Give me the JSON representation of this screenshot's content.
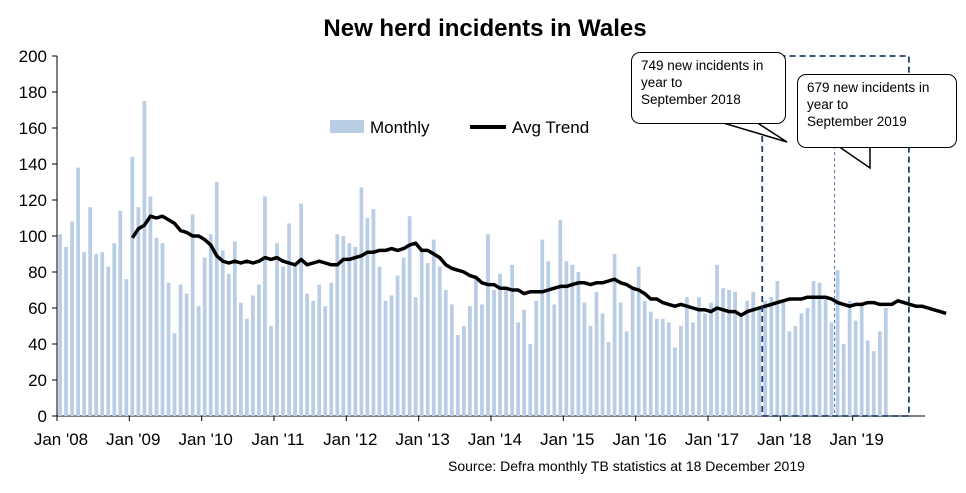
{
  "chart_data": {
    "type": "bar+line",
    "title": "New herd incidents in Wales",
    "xlabel": "",
    "ylabel": "",
    "ylim": [
      0,
      200
    ],
    "yticks": [
      0,
      20,
      40,
      60,
      80,
      100,
      120,
      140,
      160,
      180,
      200
    ],
    "x_tick_labels": [
      "Jan '08",
      "Jan '09",
      "Jan '10",
      "Jan '11",
      "Jan '12",
      "Jan '13",
      "Jan '14",
      "Jan '15",
      "Jan '16",
      "Jan '17",
      "Jan '18",
      "Jan '19"
    ],
    "legend": [
      "Monthly",
      "Avg Trend"
    ],
    "legend_position": "top-center",
    "series": [
      {
        "name": "Monthly",
        "type": "bar",
        "color": "#b9cde5",
        "start": "Jan 2008",
        "values": [
          101,
          94,
          108,
          138,
          91,
          116,
          90,
          91,
          83,
          96,
          114,
          76,
          144,
          116,
          175,
          122,
          99,
          96,
          74,
          46,
          73,
          68,
          112,
          61,
          88,
          101,
          130,
          92,
          79,
          97,
          63,
          54,
          67,
          73,
          122,
          50,
          96,
          83,
          107,
          85,
          118,
          68,
          64,
          73,
          61,
          74,
          101,
          100,
          96,
          94,
          127,
          110,
          115,
          83,
          64,
          67,
          78,
          88,
          111,
          66,
          92,
          85,
          98,
          83,
          70,
          62,
          45,
          50,
          61,
          77,
          62,
          101,
          70,
          79,
          70,
          84,
          52,
          59,
          40,
          64,
          98,
          86,
          62,
          109,
          86,
          84,
          80,
          63,
          50,
          69,
          57,
          41,
          90,
          63,
          47,
          71,
          83,
          64,
          58,
          54,
          54,
          52,
          38,
          50,
          66,
          52,
          66,
          57,
          63,
          84,
          71,
          70,
          69,
          55,
          64,
          69,
          61,
          64,
          66,
          75,
          63,
          47,
          50,
          57,
          60,
          75,
          74,
          66,
          52,
          81,
          40,
          64,
          53,
          62,
          42,
          36,
          47,
          60
        ]
      },
      {
        "name": "Avg Trend",
        "type": "line",
        "color": "#000000",
        "start": "Jan 2009",
        "values": [
          99,
          104,
          106,
          111,
          110,
          111,
          109,
          107,
          103,
          102,
          100,
          100,
          98,
          95,
          89,
          86,
          85,
          86,
          85,
          86,
          85,
          86,
          88,
          87,
          88,
          86,
          85,
          84,
          87,
          84,
          85,
          86,
          85,
          84,
          84,
          87,
          87,
          88,
          89,
          91,
          91,
          92,
          92,
          93,
          92,
          93,
          95,
          96,
          92,
          92,
          90,
          88,
          84,
          82,
          81,
          80,
          78,
          77,
          74,
          73,
          73,
          71,
          71,
          70,
          70,
          68,
          69,
          69,
          69,
          70,
          71,
          72,
          72,
          73,
          74,
          74,
          73,
          74,
          74,
          75,
          76,
          74,
          73,
          71,
          70,
          68,
          65,
          65,
          63,
          62,
          61,
          62,
          61,
          60,
          59,
          59,
          58,
          60,
          59,
          58,
          58,
          56,
          58,
          59,
          60,
          61,
          62,
          63,
          64,
          65,
          65,
          65,
          66,
          66,
          66,
          66,
          65,
          63,
          62,
          61,
          62,
          62,
          63,
          63,
          62,
          62,
          62,
          64,
          63,
          62,
          61,
          61,
          60,
          59,
          58,
          57
        ]
      }
    ],
    "annotations": [
      {
        "text_lines": [
          "749 new incidents in",
          "year to",
          "September 2018"
        ],
        "period": "Oct 2017 – Sep 2018"
      },
      {
        "text_lines": [
          "679 new incidents in",
          "year to",
          "September 2019"
        ],
        "period": "Oct 2018 – Sep 2019"
      }
    ],
    "source": "Source: Defra monthly TB statistics at 18 December 2019"
  }
}
